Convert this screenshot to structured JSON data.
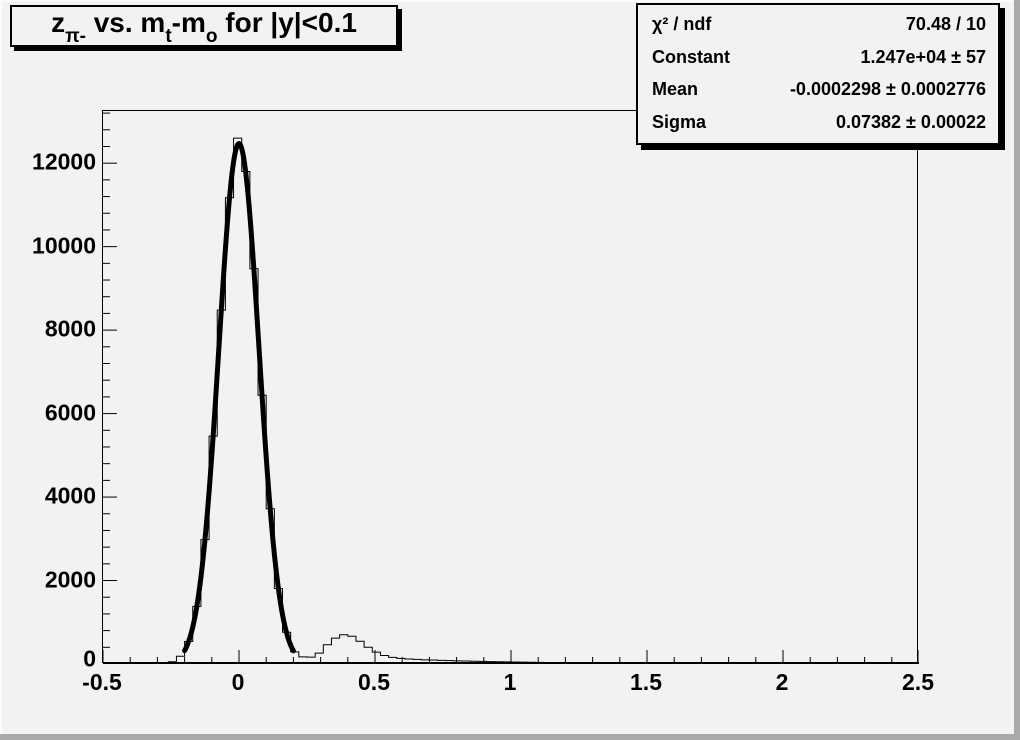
{
  "title": {
    "full": "z_{pi-} vs. m_t-m_o for |y|<0.1",
    "base1": "z",
    "sub1": "π-",
    "base2": " vs. m",
    "sub2": "t",
    "base3": "-m",
    "sub3": "o",
    "base4": " for |y|<0.1"
  },
  "stats": {
    "rows": [
      {
        "label": "χ² / ndf",
        "value": "70.48 / 10"
      },
      {
        "label": "Constant",
        "value": "1.247e+04 ± 57"
      },
      {
        "label": "Mean",
        "value": "-0.0002298 ± 0.0002776"
      },
      {
        "label": "Sigma",
        "value": "0.07382 ± 0.00022"
      }
    ]
  },
  "colors": {
    "canvas_background": "#f2f2f2",
    "frame_border": "#000000",
    "histogram_line": "#000000",
    "fit_curve": "#000000",
    "bevel_shadow": "#a9a9a9"
  },
  "chart_data": {
    "type": "bar",
    "style": "step-histogram with thick gaussian fit curve",
    "title": "z_{π-} vs. m_t-m_o for |y|<0.1",
    "xlabel": "",
    "ylabel": "",
    "xlim": [
      -0.5,
      2.5
    ],
    "ylim": [
      0,
      13250
    ],
    "grid": false,
    "legend": false,
    "bin_width": 0.03,
    "first_bin_center": -0.485,
    "counts": [
      0,
      0,
      0,
      0,
      0,
      0,
      0,
      12,
      55,
      185,
      540,
      1380,
      2980,
      5460,
      8480,
      11170,
      12600,
      11800,
      9470,
      6440,
      3720,
      1810,
      760,
      290,
      170,
      165,
      260,
      460,
      620,
      700,
      665,
      545,
      400,
      285,
      205,
      160,
      135,
      120,
      110,
      100,
      95,
      88,
      82,
      76,
      72,
      66,
      62,
      58,
      54,
      50,
      47,
      44,
      41,
      38,
      34,
      30,
      27,
      24,
      18,
      12,
      8,
      5,
      3,
      2,
      2,
      1,
      1,
      8,
      10,
      6,
      2,
      0,
      0,
      0,
      0,
      0,
      0,
      0,
      0,
      0,
      0,
      0,
      0,
      0,
      0,
      0,
      0,
      0,
      0,
      0,
      0,
      0,
      0,
      0,
      0,
      0,
      0,
      0,
      0,
      0
    ],
    "fit": {
      "type": "gaussian",
      "constant": 12470,
      "mean": -0.0002298,
      "sigma": 0.07382,
      "range": [
        -0.2,
        0.2
      ]
    },
    "x_ticks": [
      {
        "v": -0.5,
        "label": "-0.5"
      },
      {
        "v": 0,
        "label": "0"
      },
      {
        "v": 0.5,
        "label": "0.5"
      },
      {
        "v": 1,
        "label": "1"
      },
      {
        "v": 1.5,
        "label": "1.5"
      },
      {
        "v": 2,
        "label": "2"
      },
      {
        "v": 2.5,
        "label": "2.5"
      }
    ],
    "x_minor_step": 0.1,
    "y_ticks": [
      {
        "v": 0,
        "label": "0"
      },
      {
        "v": 2000,
        "label": "2000"
      },
      {
        "v": 4000,
        "label": "4000"
      },
      {
        "v": 6000,
        "label": "6000"
      },
      {
        "v": 8000,
        "label": "8000"
      },
      {
        "v": 10000,
        "label": "10000"
      },
      {
        "v": 12000,
        "label": "12000"
      }
    ],
    "y_minor_step": 400
  }
}
